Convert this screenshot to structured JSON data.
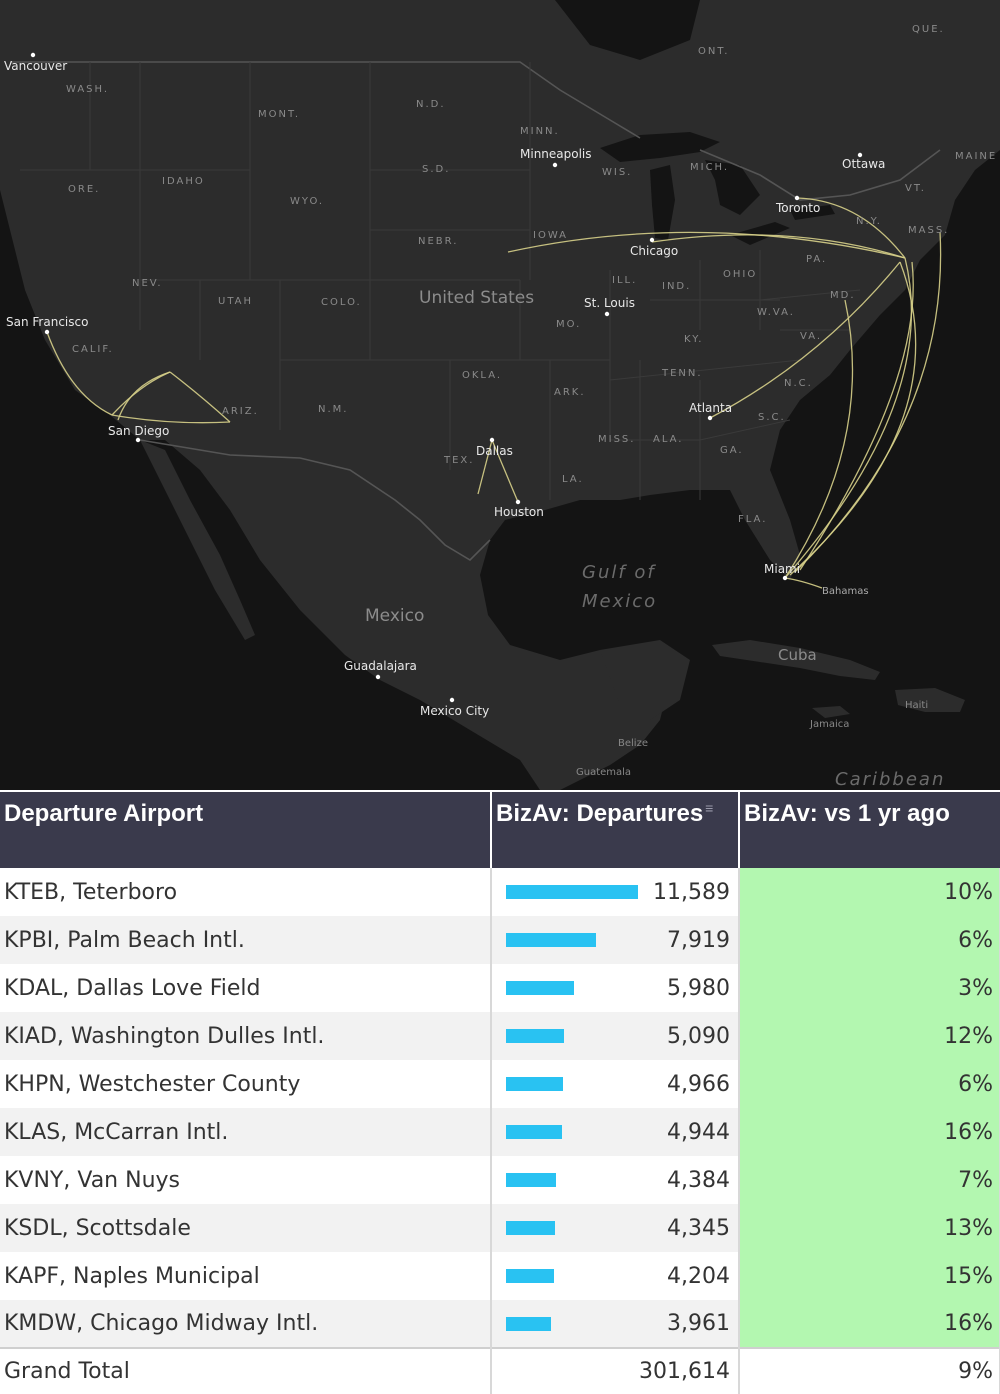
{
  "map": {
    "states": [
      "WASH.",
      "ORE.",
      "IDAHO",
      "MONT.",
      "WYO.",
      "NEV.",
      "CALIF.",
      "UTAH",
      "COLO.",
      "ARIZ.",
      "N.M.",
      "N.D.",
      "S.D.",
      "NEBR.",
      "MINN.",
      "IOWA",
      "WIS.",
      "MICH.",
      "ILL.",
      "IND.",
      "OHIO",
      "MO.",
      "KY.",
      "TENN.",
      "OKLA.",
      "ARK.",
      "TEX.",
      "LA.",
      "MISS.",
      "ALA.",
      "GA.",
      "S.C.",
      "N.C.",
      "VA.",
      "W.VA.",
      "PA.",
      "N.Y.",
      "MASS.",
      "VT.",
      "MAINE",
      "FLA.",
      "MD.",
      "ONT.",
      "QUE."
    ],
    "cities": [
      "Vancouver",
      "San Francisco",
      "San Diego",
      "Minneapolis",
      "Chicago",
      "St. Louis",
      "Dallas",
      "Houston",
      "Atlanta",
      "Toronto",
      "Ottawa",
      "Miami",
      "Bahamas",
      "Guadalajara",
      "Mexico City",
      "Belize",
      "Guatemala",
      "Jamaica",
      "Haiti",
      "Cuba"
    ],
    "countries": {
      "us": "United States",
      "mexico": "Mexico"
    },
    "waters": {
      "gulf_line1": "Gulf of",
      "gulf_line2": "Mexico",
      "caribbean": "Caribbean"
    },
    "route_color": "#d7d08a"
  },
  "table": {
    "headers": {
      "airport": "Departure Airport",
      "departures": "BizAv: Departures",
      "vs": "BizAv: vs 1 yr ago"
    },
    "max_departures": 11589,
    "bar_color": "#29c2f2",
    "positive_color": "#b3f7b0",
    "rows": [
      {
        "airport": "KTEB, Teterboro",
        "departures": "11,589",
        "value": 11589,
        "vs": "10%"
      },
      {
        "airport": "KPBI, Palm Beach Intl.",
        "departures": "7,919",
        "value": 7919,
        "vs": "6%"
      },
      {
        "airport": "KDAL, Dallas Love Field",
        "departures": "5,980",
        "value": 5980,
        "vs": "3%"
      },
      {
        "airport": "KIAD, Washington Dulles Intl.",
        "departures": "5,090",
        "value": 5090,
        "vs": "12%"
      },
      {
        "airport": "KHPN, Westchester County",
        "departures": "4,966",
        "value": 4966,
        "vs": "6%"
      },
      {
        "airport": "KLAS, McCarran Intl.",
        "departures": "4,944",
        "value": 4944,
        "vs": "16%"
      },
      {
        "airport": "KVNY, Van Nuys",
        "departures": "4,384",
        "value": 4384,
        "vs": "7%"
      },
      {
        "airport": "KSDL, Scottsdale",
        "departures": "4,345",
        "value": 4345,
        "vs": "13%"
      },
      {
        "airport": "KAPF, Naples Municipal",
        "departures": "4,204",
        "value": 4204,
        "vs": "15%"
      },
      {
        "airport": "KMDW, Chicago Midway Intl.",
        "departures": "3,961",
        "value": 3961,
        "vs": "16%"
      }
    ],
    "total": {
      "label": "Grand Total",
      "departures": "301,614",
      "vs": "9%"
    }
  }
}
